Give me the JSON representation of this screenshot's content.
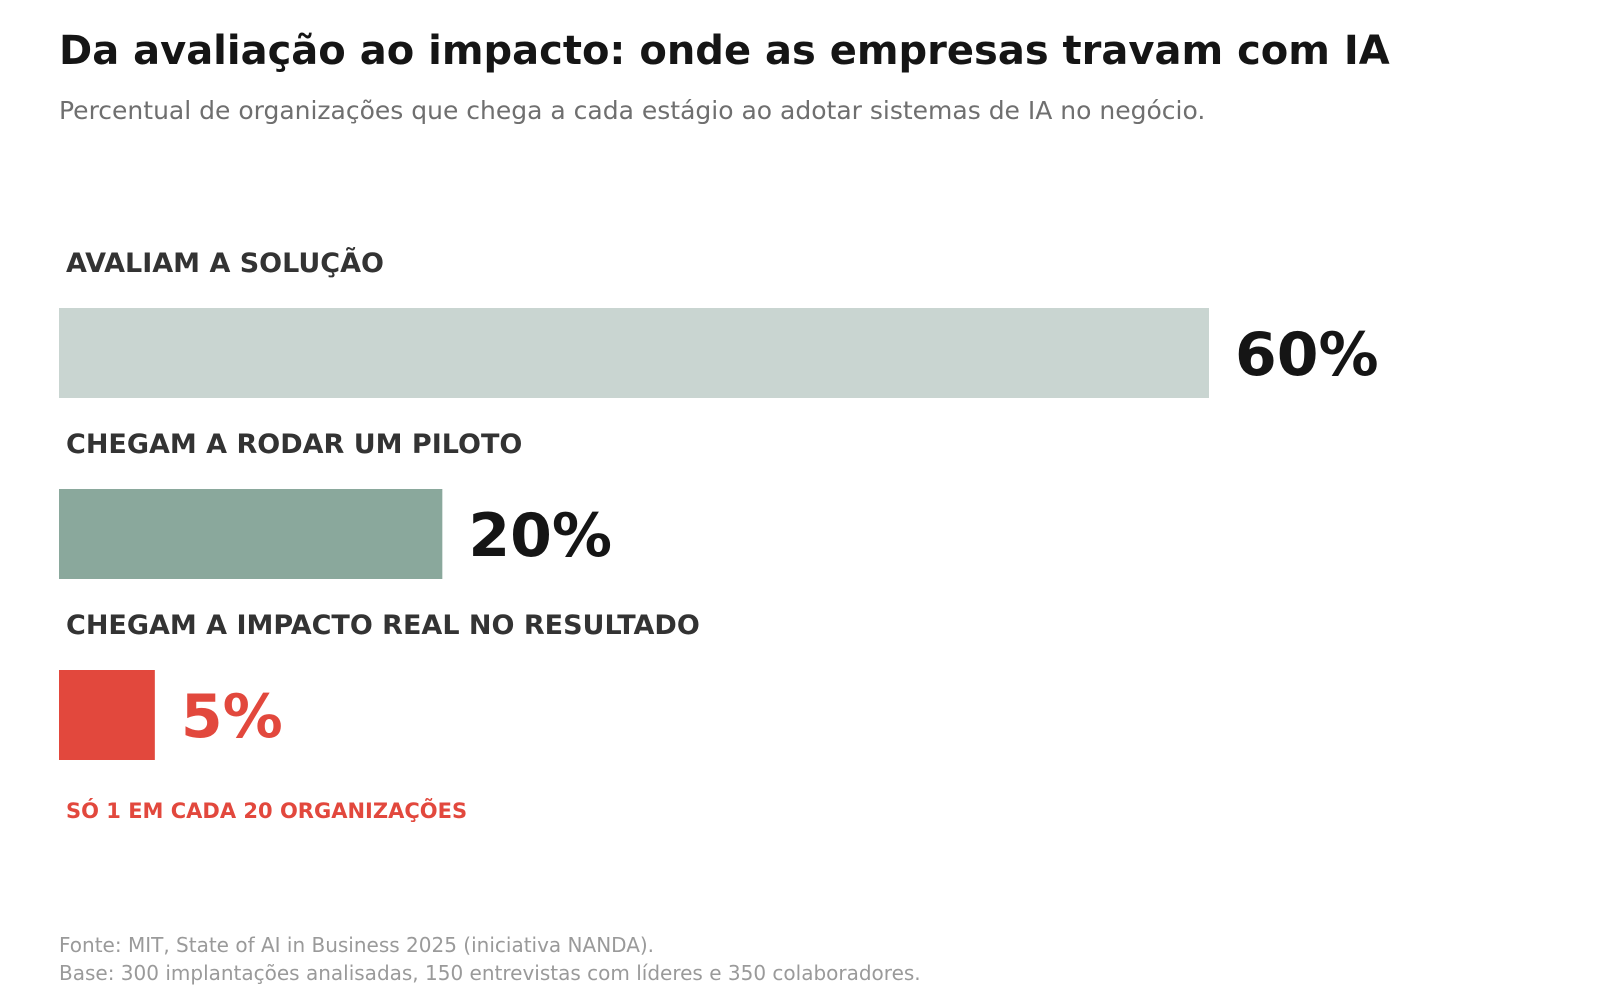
{
  "chart_data": {
    "type": "bar",
    "orientation": "horizontal",
    "title": "Da avaliação ao impacto: onde as empresas travam com IA",
    "subtitle": "Percentual de organizações que chega a cada estágio ao adotar sistemas de IA no negócio.",
    "categories": [
      "AVALIAM A SOLUÇÃO",
      "CHEGAM A RODAR UM PILOTO",
      "CHEGAM A IMPACTO REAL NO RESULTADO"
    ],
    "values": [
      60,
      20,
      5
    ],
    "value_labels": [
      "60%",
      "20%",
      "5%"
    ],
    "unit": "%",
    "xlim": [
      0,
      100
    ],
    "bar_colors": [
      "#c9d5d1",
      "#8aa89c",
      "#e2483d"
    ],
    "value_label_colors": [
      "#151515",
      "#151515",
      "#e2483d"
    ],
    "grid": false,
    "legend": "none",
    "annotation": "SÓ 1 EM CADA 20 ORGANIZAÇÕES",
    "source": "Fonte: MIT, State of AI in Business 2025 (iniciativa NANDA).",
    "base": "Base: 300 implantações analisadas, 150 entrevistas com líderes e 350 colaboradores."
  }
}
